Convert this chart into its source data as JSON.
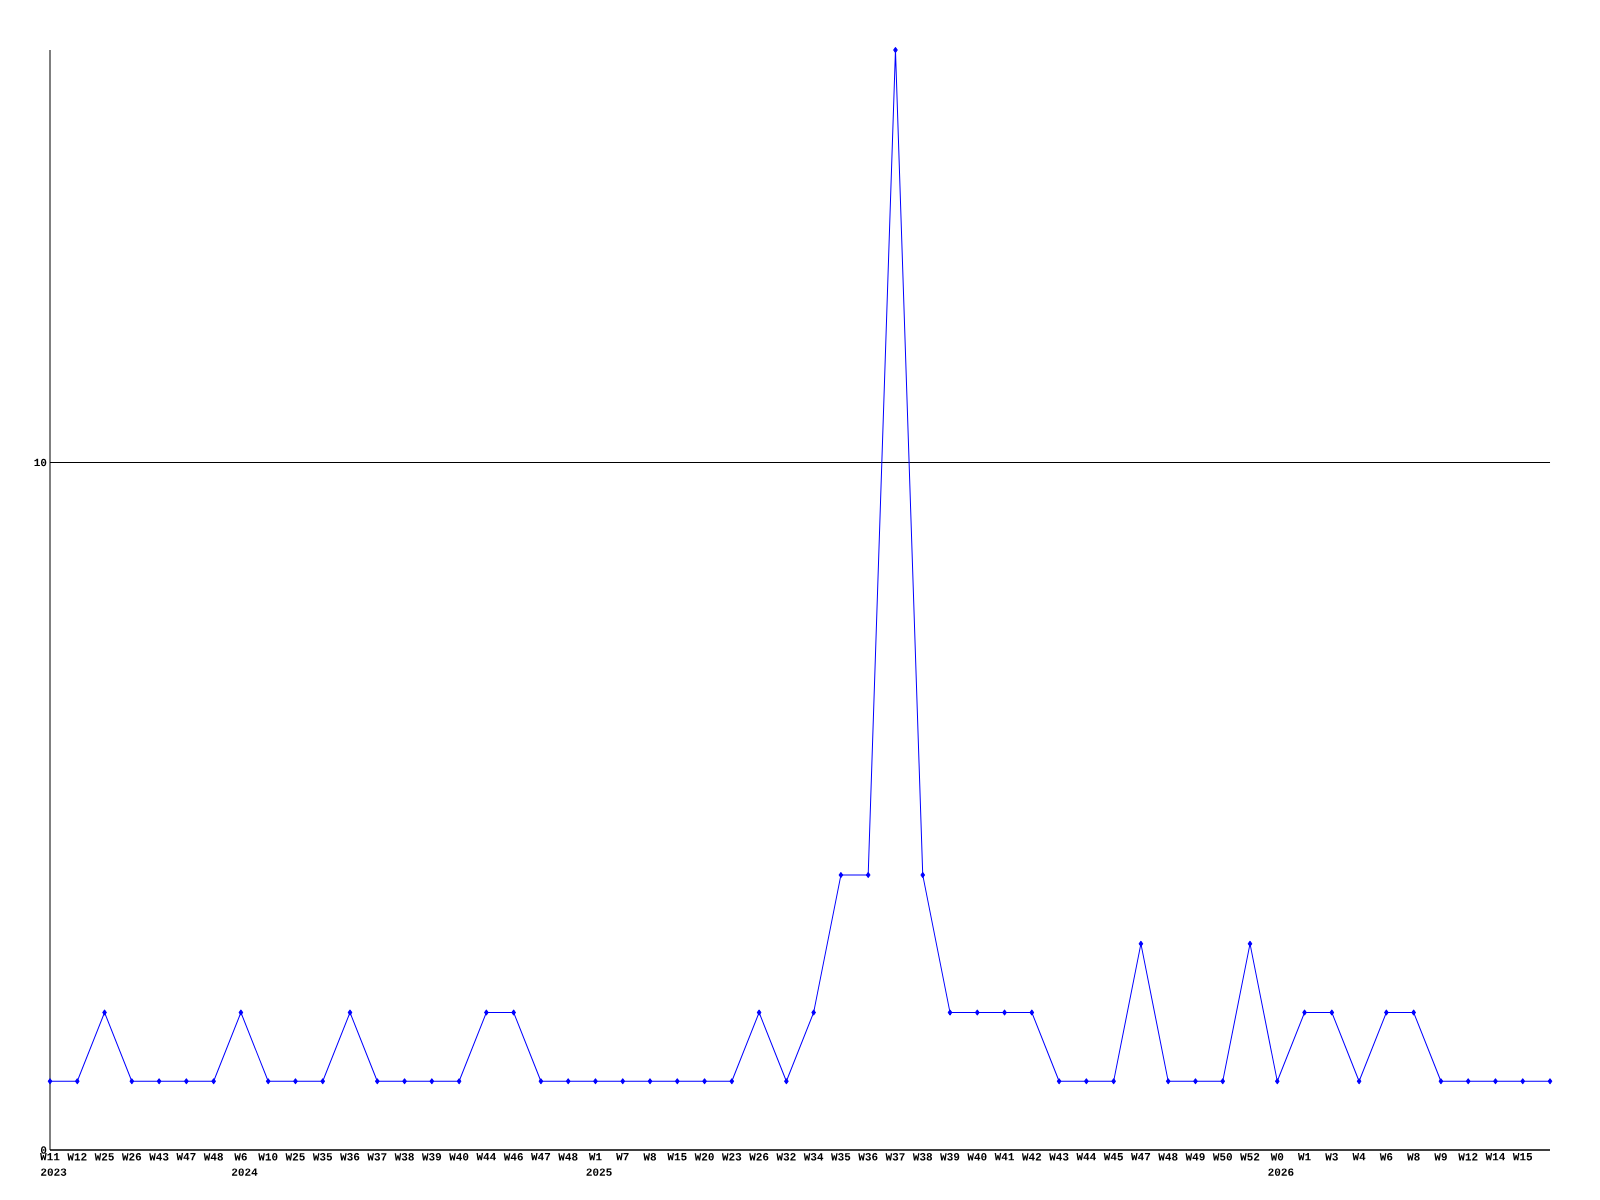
{
  "chart_data": {
    "type": "line",
    "categories": [
      "W11",
      "W12",
      "W25",
      "W26",
      "W43",
      "W47",
      "W48",
      "W6",
      "W10",
      "W25",
      "W35",
      "W36",
      "W37",
      "W38",
      "W39",
      "W40",
      "W44",
      "W46",
      "W47",
      "W48",
      "W1",
      "W7",
      "W8",
      "W15",
      "W20",
      "W23",
      "W26",
      "W32",
      "W34",
      "W35",
      "W36",
      "W37",
      "W38",
      "W39",
      "W40",
      "W41",
      "W42",
      "W43",
      "W44",
      "W45",
      "W47",
      "W48",
      "W49",
      "W50",
      "W52",
      "W0",
      "W1",
      "W3",
      "W4",
      "W6",
      "W8",
      "W9",
      "W12",
      "W14",
      "W15",
      null
    ],
    "values": [
      1,
      1,
      2,
      1,
      1,
      1,
      1,
      2,
      1,
      1,
      1,
      2,
      1,
      1,
      1,
      1,
      2,
      2,
      1,
      1,
      1,
      1,
      1,
      1,
      1,
      1,
      2,
      1,
      2,
      4,
      4,
      16,
      4,
      2,
      2,
      2,
      2,
      1,
      1,
      1,
      3,
      1,
      1,
      1,
      3,
      1,
      2,
      2,
      1,
      2,
      2,
      1,
      1,
      1,
      1,
      1
    ],
    "color": "#0000ff",
    "marker": "diamond",
    "grid": "y",
    "ylim": [
      0,
      16
    ],
    "yticks": [
      0,
      10
    ],
    "annotations": [
      "2023",
      "2024",
      "2025",
      "2026"
    ]
  }
}
